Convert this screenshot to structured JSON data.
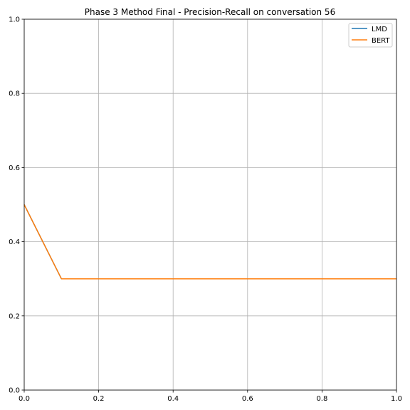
{
  "chart_data": {
    "type": "line",
    "title": "Phase 3 Method Final - Precision-Recall on conversation 56",
    "xlabel": "",
    "ylabel": "",
    "xlim": [
      0,
      1
    ],
    "ylim": [
      0,
      1
    ],
    "xticks": [
      "0.0",
      "0.2",
      "0.4",
      "0.6",
      "0.8",
      "1.0"
    ],
    "yticks": [
      "0.0",
      "0.2",
      "0.4",
      "0.6",
      "0.8",
      "1.0"
    ],
    "grid": true,
    "legend_position": "top-right",
    "series": [
      {
        "name": "LMD",
        "color": "#1f77b4",
        "x": [
          0.0,
          0.1,
          0.2,
          0.3,
          0.4,
          0.5,
          0.6,
          0.7,
          0.8,
          0.9,
          1.0
        ],
        "y": [
          0.5,
          0.3,
          0.3,
          0.3,
          0.3,
          0.3,
          0.3,
          0.3,
          0.3,
          0.3,
          0.3
        ]
      },
      {
        "name": "BERT",
        "color": "#ff7f0e",
        "x": [
          0.0,
          0.1,
          0.2,
          0.3,
          0.4,
          0.5,
          0.6,
          0.7,
          0.8,
          0.9,
          1.0
        ],
        "y": [
          0.5,
          0.3,
          0.3,
          0.3,
          0.3,
          0.3,
          0.3,
          0.3,
          0.3,
          0.3,
          0.3
        ]
      }
    ]
  }
}
